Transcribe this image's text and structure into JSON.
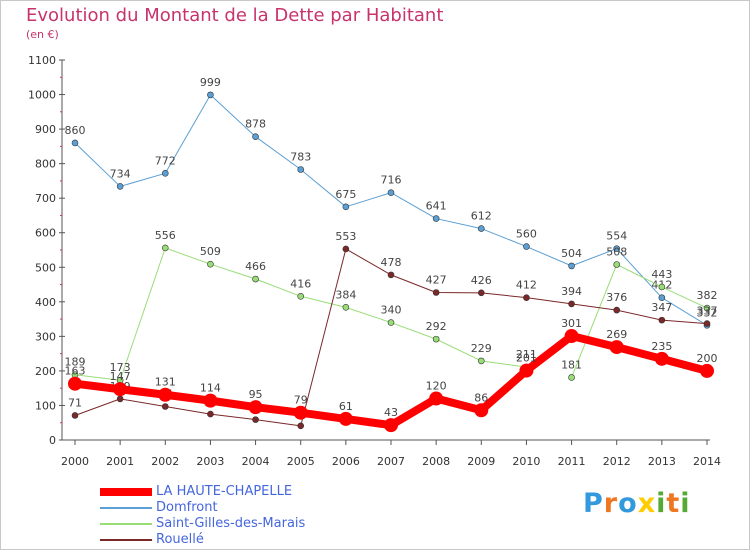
{
  "chart_data": {
    "type": "line",
    "title": "Evolution du Montant de la Dette par Habitant",
    "subtitle": "(en €)",
    "xlabel": "",
    "ylabel": "",
    "x": [
      "2000",
      "2001",
      "2002",
      "2003",
      "2004",
      "2005",
      "2006",
      "2007",
      "2008",
      "2009",
      "2010",
      "2011",
      "2012",
      "2013",
      "2014"
    ],
    "ylim": [
      0,
      1100
    ],
    "yticks": [
      "0",
      "100",
      "200",
      "300",
      "400",
      "500",
      "600",
      "700",
      "800",
      "900",
      "1000",
      "1100"
    ],
    "grid": false,
    "legend_position": "bottom-left",
    "series": [
      {
        "name": "Domfront",
        "color": "#5b9fd4",
        "width": 1,
        "values": [
          860,
          734,
          772,
          999,
          878,
          783,
          675,
          716,
          641,
          612,
          560,
          504,
          554,
          412,
          332
        ],
        "labels": [
          "860",
          "734",
          "772",
          "999",
          "878",
          "783",
          "675",
          "716",
          "641",
          "612",
          "560",
          "504",
          "554",
          "412",
          "332"
        ]
      },
      {
        "name": "Saint-Gilles-des-Marais",
        "color": "#99dd77",
        "width": 1,
        "values": [
          189,
          173,
          556,
          509,
          466,
          416,
          384,
          340,
          292,
          229,
          211,
          181,
          508,
          443,
          382
        ],
        "labels": [
          "189",
          "173",
          "556",
          "509",
          "466",
          "416",
          "384",
          "340",
          "292",
          "229",
          "211",
          "181",
          "508",
          "443",
          "382"
        ],
        "gaps_after": [
          10
        ]
      },
      {
        "name": "Rouellé",
        "color": "#7a2828",
        "width": 1,
        "values": [
          71,
          119,
          97,
          75,
          59,
          41,
          553,
          478,
          427,
          426,
          412,
          394,
          376,
          347,
          337
        ],
        "labels": [
          "71",
          "119",
          "97",
          "75",
          "59",
          "41",
          "553",
          "478",
          "427",
          "426",
          "412",
          "394",
          "376",
          "347",
          "337"
        ]
      },
      {
        "name": "LA HAUTE-CHAPELLE",
        "color": "#ff0000",
        "width": 8,
        "values": [
          163,
          147,
          131,
          114,
          95,
          79,
          61,
          43,
          120,
          86,
          201,
          301,
          269,
          235,
          200
        ],
        "labels": [
          "163",
          "147",
          "131",
          "114",
          "95",
          "79",
          "61",
          "43",
          "120",
          "86",
          "201",
          "301",
          "269",
          "235",
          "200"
        ]
      }
    ]
  },
  "legend": {
    "items": [
      {
        "label": "LA HAUTE-CHAPELLE",
        "color": "#ff0000",
        "thick": true
      },
      {
        "label": "Domfront",
        "color": "#5b9fd4",
        "thick": false
      },
      {
        "label": "Saint-Gilles-des-Marais",
        "color": "#99dd77",
        "thick": false
      },
      {
        "label": "Rouellé",
        "color": "#7a2828",
        "thick": false
      }
    ]
  },
  "brand": {
    "letters": [
      "P",
      "r",
      "o",
      "x",
      "i",
      "t",
      "i"
    ],
    "colors": [
      "#3399dd",
      "#ee7722",
      "#3399dd",
      "#ffcc00",
      "#55aa33",
      "#ee7722",
      "#55aa33"
    ]
  }
}
